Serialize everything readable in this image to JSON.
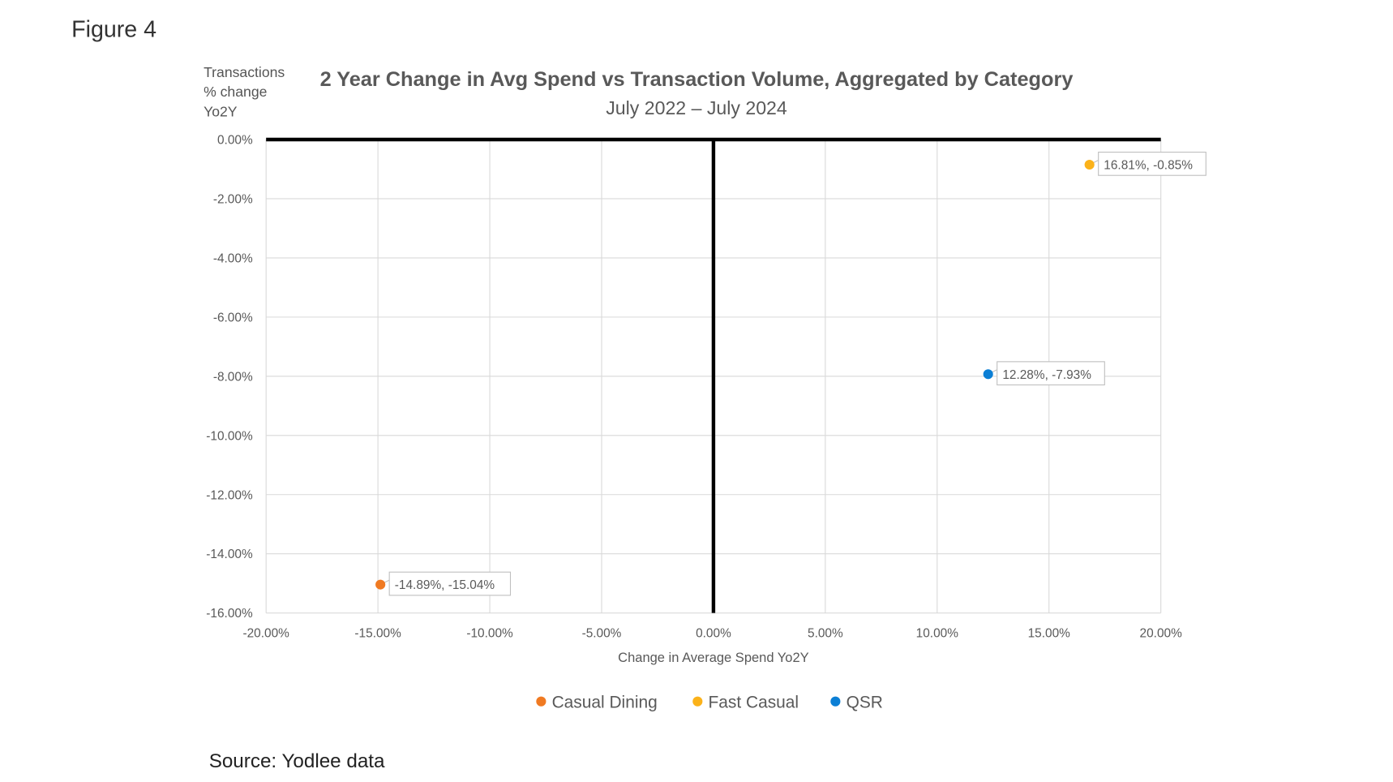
{
  "figure_label": "Figure 4",
  "source": "Source: Yodlee data",
  "chart_data": {
    "type": "scatter",
    "title": "2 Year Change in Avg Spend vs Transaction Volume, Aggregated by Category",
    "subtitle": "July 2022 – July 2024",
    "xlabel": "Change in Average Spend Yo2Y",
    "ylabel_lines": [
      "Transactions",
      "% change",
      "Yo2Y"
    ],
    "xlim": [
      -20,
      20
    ],
    "ylim": [
      -16,
      0
    ],
    "xticks": [
      -20,
      -15,
      -10,
      -5,
      0,
      5,
      10,
      15,
      20
    ],
    "yticks": [
      0,
      -2,
      -4,
      -6,
      -8,
      -10,
      -12,
      -14,
      -16
    ],
    "xtick_labels": [
      "-20.00%",
      "-15.00%",
      "-10.00%",
      "-5.00%",
      "0.00%",
      "5.00%",
      "10.00%",
      "15.00%",
      "20.00%"
    ],
    "ytick_labels": [
      "0.00%",
      "-2.00%",
      "-4.00%",
      "-6.00%",
      "-8.00%",
      "-10.00%",
      "-12.00%",
      "-14.00%",
      "-16.00%"
    ],
    "grid": true,
    "legend_position": "bottom",
    "series": [
      {
        "name": "Casual Dining",
        "color": "#F07A22",
        "x": -14.89,
        "y": -15.04,
        "label": "-14.89%, -15.04%"
      },
      {
        "name": "Fast Casual",
        "color": "#FBB21A",
        "x": 16.81,
        "y": -0.85,
        "label": "16.81%, -0.85%"
      },
      {
        "name": "QSR",
        "color": "#0B7FD5",
        "x": 12.28,
        "y": -7.93,
        "label": "12.28%, -7.93%"
      }
    ]
  }
}
